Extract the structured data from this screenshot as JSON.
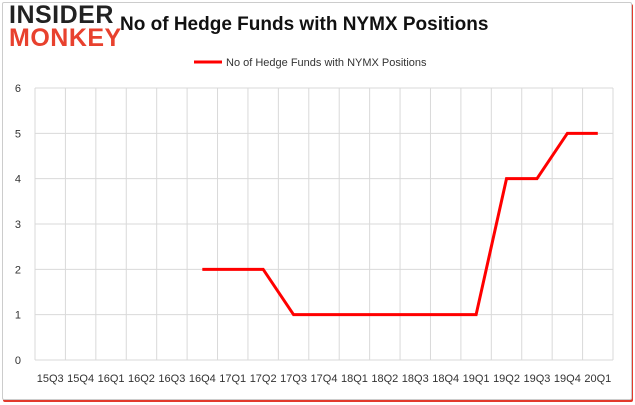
{
  "brand": {
    "line1": "INSIDER",
    "line2": "MONKEY"
  },
  "colors": {
    "series": "#ff0000",
    "grid": "#d9d9d9",
    "brand_red": "#e8412e"
  },
  "chart_data": {
    "type": "line",
    "title": "No of Hedge Funds with NYMX Positions",
    "categories": [
      "15Q3",
      "15Q4",
      "16Q1",
      "16Q2",
      "16Q3",
      "16Q4",
      "17Q1",
      "17Q2",
      "17Q3",
      "17Q4",
      "18Q1",
      "18Q2",
      "18Q3",
      "18Q4",
      "19Q1",
      "19Q2",
      "19Q3",
      "19Q4",
      "20Q1"
    ],
    "series": [
      {
        "name": "No of Hedge Funds with NYMX Positions",
        "values": [
          null,
          null,
          null,
          null,
          null,
          2,
          2,
          2,
          1,
          1,
          1,
          1,
          1,
          1,
          1,
          4,
          4,
          5,
          5
        ]
      }
    ],
    "ylim": [
      0,
      6
    ],
    "yticks": [
      0,
      1,
      2,
      3,
      4,
      5,
      6
    ],
    "grid": true,
    "legend": "top-center",
    "xlabel": "",
    "ylabel": ""
  }
}
